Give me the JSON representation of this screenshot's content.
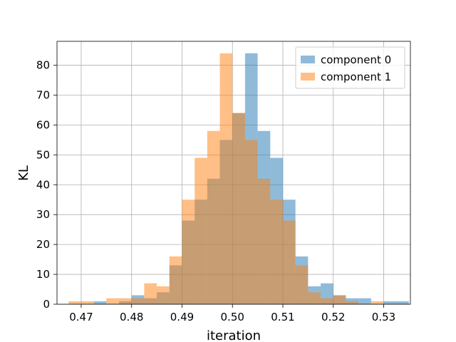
{
  "chart_data": {
    "type": "histogram",
    "title": "",
    "xlabel": "iteration",
    "ylabel": "KL",
    "xlim": [
      0.4652,
      0.5353
    ],
    "ylim": [
      0,
      88
    ],
    "xticks": [
      0.47,
      0.48,
      0.49,
      0.5,
      0.51,
      0.52,
      0.53
    ],
    "xtick_labels": [
      "0.47",
      "0.48",
      "0.49",
      "0.50",
      "0.51",
      "0.52",
      "0.53"
    ],
    "yticks": [
      0,
      10,
      20,
      30,
      40,
      50,
      60,
      70,
      80
    ],
    "grid": true,
    "legend_position": "top-right",
    "series": [
      {
        "name": "component 0",
        "color": "#1f77b4",
        "alpha": 0.5,
        "bins": [
          [
            0.4725,
            0.475,
            1
          ],
          [
            0.475,
            0.4775,
            0
          ],
          [
            0.4775,
            0.48,
            1
          ],
          [
            0.48,
            0.4825,
            3
          ],
          [
            0.4825,
            0.485,
            2
          ],
          [
            0.485,
            0.4875,
            4
          ],
          [
            0.4875,
            0.49,
            13
          ],
          [
            0.49,
            0.4925,
            28
          ],
          [
            0.4925,
            0.495,
            35
          ],
          [
            0.495,
            0.4975,
            42
          ],
          [
            0.4975,
            0.5,
            55
          ],
          [
            0.5,
            0.5025,
            64
          ],
          [
            0.5025,
            0.505,
            84
          ],
          [
            0.505,
            0.5075,
            58
          ],
          [
            0.5075,
            0.51,
            49
          ],
          [
            0.51,
            0.5125,
            35
          ],
          [
            0.5125,
            0.515,
            16
          ],
          [
            0.515,
            0.5175,
            6
          ],
          [
            0.5175,
            0.52,
            7
          ],
          [
            0.52,
            0.5225,
            3
          ],
          [
            0.5225,
            0.525,
            2
          ],
          [
            0.525,
            0.5275,
            2
          ],
          [
            0.5275,
            0.53,
            0
          ],
          [
            0.53,
            0.5325,
            1
          ],
          [
            0.5325,
            0.535,
            1
          ]
        ]
      },
      {
        "name": "component 1",
        "color": "#ff7f0e",
        "alpha": 0.5,
        "bins": [
          [
            0.4675,
            0.47,
            1
          ],
          [
            0.47,
            0.4725,
            1
          ],
          [
            0.4725,
            0.475,
            0
          ],
          [
            0.475,
            0.4775,
            2
          ],
          [
            0.4775,
            0.48,
            2
          ],
          [
            0.48,
            0.4825,
            2
          ],
          [
            0.4825,
            0.485,
            7
          ],
          [
            0.485,
            0.4875,
            6
          ],
          [
            0.4875,
            0.49,
            16
          ],
          [
            0.49,
            0.4925,
            35
          ],
          [
            0.4925,
            0.495,
            49
          ],
          [
            0.495,
            0.4975,
            58
          ],
          [
            0.4975,
            0.5,
            84
          ],
          [
            0.5,
            0.5025,
            64
          ],
          [
            0.5025,
            0.505,
            55
          ],
          [
            0.505,
            0.5075,
            42
          ],
          [
            0.5075,
            0.51,
            35
          ],
          [
            0.51,
            0.5125,
            28
          ],
          [
            0.5125,
            0.515,
            13
          ],
          [
            0.515,
            0.5175,
            4
          ],
          [
            0.5175,
            0.52,
            2
          ],
          [
            0.52,
            0.5225,
            3
          ],
          [
            0.5225,
            0.525,
            1
          ],
          [
            0.525,
            0.5275,
            0
          ],
          [
            0.5275,
            0.53,
            1
          ]
        ]
      }
    ]
  }
}
